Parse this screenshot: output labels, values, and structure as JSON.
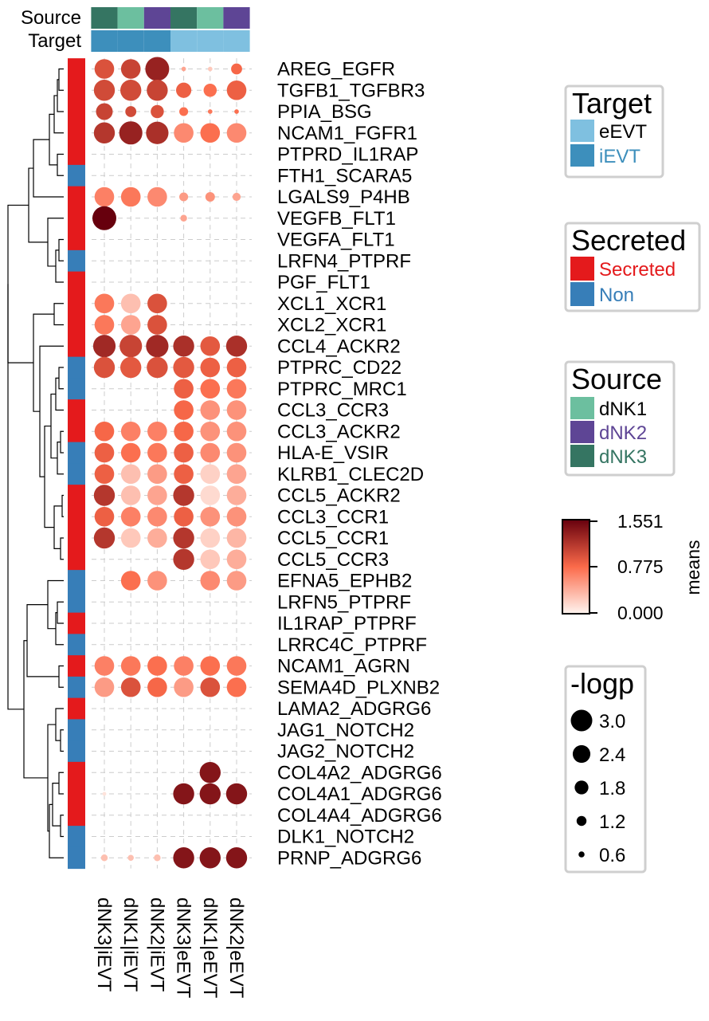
{
  "chart_data": {
    "type": "dotplot-heatmap",
    "color_scale": {
      "title": "means",
      "min": 0.0,
      "max": 1.551,
      "ticks": [
        "1.551",
        "0.775",
        "0.000"
      ],
      "low_color": "#fff5f0",
      "mid_color": "#fb6a4a",
      "high_color": "#67000d"
    },
    "size_scale": {
      "title": "-logp",
      "entries": [
        "3.0",
        "2.4",
        "1.8",
        "1.2",
        "0.6"
      ],
      "values": [
        3.0,
        2.4,
        1.8,
        1.2,
        0.6
      ]
    },
    "annotations": {
      "source_label": "Source",
      "target_label": "Target",
      "source": [
        "dNK3",
        "dNK1",
        "dNK2",
        "dNK3",
        "dNK1",
        "dNK2"
      ],
      "target": [
        "iEVT",
        "iEVT",
        "iEVT",
        "eEVT",
        "eEVT",
        "eEVT"
      ]
    },
    "legends": {
      "target": {
        "title": "Target",
        "items": [
          {
            "label": "eEVT",
            "color": "#7fc0e0"
          },
          {
            "label": "iEVT",
            "color": "#3d8fbc"
          }
        ]
      },
      "secreted": {
        "title": "Secreted",
        "items": [
          {
            "label": "Secreted",
            "color": "#e41a1c"
          },
          {
            "label": "Non",
            "color": "#377eb8"
          }
        ]
      },
      "source": {
        "title": "Source",
        "items": [
          {
            "label": "dNK1",
            "color": "#6cbf9f"
          },
          {
            "label": "dNK2",
            "color": "#5e4595"
          },
          {
            "label": "dNK3",
            "color": "#357562"
          }
        ]
      }
    },
    "columns": [
      "dNK3|iEVT",
      "dNK1|iEVT",
      "dNK2|iEVT",
      "dNK3|eEVT",
      "dNK1|eEVT",
      "dNK2|eEVT"
    ],
    "rows": [
      {
        "name": "AREG_EGFR",
        "secreted": "Secreted",
        "means": [
          0.95,
          1.05,
          1.3,
          0.45,
          0.25,
          0.8
        ],
        "logp": [
          2.4,
          2.4,
          3.0,
          0.3,
          0.3,
          1.2
        ]
      },
      {
        "name": "TGFB1_TGFBR3",
        "secreted": "Secreted",
        "means": [
          1.0,
          1.0,
          1.05,
          0.85,
          0.75,
          0.85
        ],
        "logp": [
          2.6,
          2.6,
          2.6,
          1.8,
          1.5,
          2.4
        ]
      },
      {
        "name": "PPIA_BSG",
        "secreted": "Secreted",
        "means": [
          1.05,
          1.0,
          0.95,
          0.75,
          0.7,
          0.75
        ],
        "logp": [
          2.0,
          1.2,
          1.5,
          0.9,
          0.3,
          0.3
        ]
      },
      {
        "name": "NCAM1_FGFR1",
        "secreted": "Secreted",
        "means": [
          1.15,
          1.3,
          1.2,
          0.6,
          0.75,
          0.6
        ],
        "logp": [
          2.6,
          2.9,
          2.8,
          2.4,
          2.4,
          2.4
        ]
      },
      {
        "name": "PTPRD_IL1RAP",
        "secreted": "Secreted",
        "means": [
          0,
          0,
          0,
          0,
          0,
          0
        ],
        "logp": [
          0,
          0,
          0,
          0,
          0,
          0
        ]
      },
      {
        "name": "FTH1_SCARA5",
        "secreted": "Non",
        "means": [
          0,
          0,
          0,
          0,
          0,
          0
        ],
        "logp": [
          0,
          0,
          0,
          0,
          0,
          0
        ]
      },
      {
        "name": "LGALS9_P4HB",
        "secreted": "Secreted",
        "means": [
          0.65,
          0.7,
          0.6,
          0.5,
          0.55,
          0.45
        ],
        "logp": [
          2.4,
          2.4,
          2.4,
          0.9,
          1.0,
          0.8
        ]
      },
      {
        "name": "VEGFB_FLT1",
        "secreted": "Secreted",
        "means": [
          1.55,
          0,
          0,
          0.45,
          0,
          0
        ],
        "logp": [
          3.0,
          0,
          0,
          0.6,
          0,
          0
        ]
      },
      {
        "name": "VEGFA_FLT1",
        "secreted": "Secreted",
        "means": [
          0,
          0,
          0,
          0,
          0,
          0
        ],
        "logp": [
          0,
          0,
          0,
          0,
          0,
          0
        ]
      },
      {
        "name": "LRFN4_PTPRF",
        "secreted": "Non",
        "means": [
          0,
          0,
          0,
          0,
          0,
          0
        ],
        "logp": [
          0,
          0,
          0,
          0,
          0,
          0
        ]
      },
      {
        "name": "PGF_FLT1",
        "secreted": "Secreted",
        "means": [
          0,
          0,
          0,
          0,
          0,
          0
        ],
        "logp": [
          0,
          0,
          0,
          0,
          0,
          0
        ]
      },
      {
        "name": "XCL1_XCR1",
        "secreted": "Secreted",
        "means": [
          0.7,
          0.3,
          0.95,
          0,
          0,
          0
        ],
        "logp": [
          2.4,
          2.4,
          2.4,
          0,
          0,
          0
        ]
      },
      {
        "name": "XCL2_XCR1",
        "secreted": "Secreted",
        "means": [
          0.7,
          0.45,
          0.95,
          0,
          0,
          0
        ],
        "logp": [
          2.4,
          2.4,
          2.4,
          0,
          0,
          0
        ]
      },
      {
        "name": "CCL4_ACKR2",
        "secreted": "Secreted",
        "means": [
          1.25,
          1.05,
          1.25,
          1.2,
          0.9,
          1.2
        ],
        "logp": [
          2.8,
          2.8,
          2.8,
          2.6,
          2.4,
          2.6
        ]
      },
      {
        "name": "PTPRC_CD22",
        "secreted": "Non",
        "means": [
          0.95,
          0.9,
          0.95,
          0.9,
          0.85,
          0.85
        ],
        "logp": [
          2.6,
          2.6,
          2.6,
          2.6,
          2.4,
          2.4
        ]
      },
      {
        "name": "PTPRC_MRC1",
        "secreted": "Non",
        "means": [
          0,
          0,
          0,
          0.85,
          0.75,
          0.7
        ],
        "logp": [
          0,
          0,
          0,
          2.4,
          2.4,
          2.4
        ]
      },
      {
        "name": "CCL3_CCR3",
        "secreted": "Secreted",
        "means": [
          0,
          0,
          0,
          0.8,
          0.55,
          0.55
        ],
        "logp": [
          0,
          0,
          0,
          2.4,
          2.4,
          2.4
        ]
      },
      {
        "name": "CCL3_ACKR2",
        "secreted": "Secreted",
        "means": [
          0.8,
          0.65,
          0.65,
          0.8,
          0.55,
          0.55
        ],
        "logp": [
          2.4,
          2.4,
          2.4,
          2.4,
          2.4,
          2.4
        ]
      },
      {
        "name": "HLA-E_VSIR",
        "secreted": "Non",
        "means": [
          0.85,
          0.75,
          0.7,
          0.85,
          0.6,
          0.55
        ],
        "logp": [
          2.4,
          2.4,
          2.4,
          2.4,
          2.4,
          2.4
        ]
      },
      {
        "name": "KLRB1_CLEC2D",
        "secreted": "Non",
        "means": [
          0.85,
          0.3,
          0.5,
          0.85,
          0.2,
          0.45
        ],
        "logp": [
          2.4,
          2.4,
          2.4,
          2.4,
          2.4,
          2.4
        ]
      },
      {
        "name": "CCL5_ACKR2",
        "secreted": "Secreted",
        "means": [
          1.15,
          0.3,
          0.45,
          1.15,
          0.15,
          0.4
        ],
        "logp": [
          2.6,
          2.4,
          2.4,
          2.6,
          2.4,
          2.4
        ]
      },
      {
        "name": "CCL3_CCR1",
        "secreted": "Secreted",
        "means": [
          0.85,
          0.65,
          0.6,
          0.85,
          0.55,
          0.55
        ],
        "logp": [
          2.4,
          2.4,
          2.4,
          2.4,
          2.4,
          2.4
        ]
      },
      {
        "name": "CCL5_CCR1",
        "secreted": "Secreted",
        "means": [
          1.15,
          0.25,
          0.4,
          1.15,
          0.2,
          0.35
        ],
        "logp": [
          2.6,
          2.4,
          2.4,
          2.6,
          2.4,
          2.4
        ]
      },
      {
        "name": "CCL5_CCR3",
        "secreted": "Secreted",
        "means": [
          0,
          0,
          0,
          1.15,
          0.25,
          0.4
        ],
        "logp": [
          0,
          0,
          0,
          2.6,
          2.4,
          2.4
        ]
      },
      {
        "name": "EFNA5_EPHB2",
        "secreted": "Non",
        "means": [
          0,
          0.75,
          0.55,
          0,
          0.6,
          0.5
        ],
        "logp": [
          0,
          2.4,
          2.4,
          0,
          2.4,
          2.4
        ]
      },
      {
        "name": "LRFN5_PTPRF",
        "secreted": "Non",
        "means": [
          0,
          0,
          0,
          0,
          0,
          0
        ],
        "logp": [
          0,
          0,
          0,
          0,
          0,
          0
        ]
      },
      {
        "name": "IL1RAP_PTPRF",
        "secreted": "Secreted",
        "means": [
          0,
          0,
          0,
          0,
          0,
          0
        ],
        "logp": [
          0,
          0,
          0,
          0,
          0,
          0
        ]
      },
      {
        "name": "LRRC4C_PTPRF",
        "secreted": "Non",
        "means": [
          0,
          0,
          0,
          0,
          0,
          0
        ],
        "logp": [
          0,
          0,
          0,
          0,
          0,
          0
        ]
      },
      {
        "name": "NCAM1_AGRN",
        "secreted": "Secreted",
        "means": [
          0.65,
          0.7,
          0.75,
          0.65,
          0.75,
          0.7
        ],
        "logp": [
          2.4,
          2.4,
          2.4,
          2.4,
          2.4,
          2.4
        ]
      },
      {
        "name": "SEMA4D_PLXNB2",
        "secreted": "Non",
        "means": [
          0.5,
          0.95,
          0.8,
          0.5,
          0.95,
          0.75
        ],
        "logp": [
          2.4,
          2.4,
          2.4,
          2.4,
          2.4,
          2.4
        ]
      },
      {
        "name": "LAMA2_ADGRG6",
        "secreted": "Secreted",
        "means": [
          0,
          0,
          0,
          0,
          0,
          0
        ],
        "logp": [
          0,
          0,
          0,
          0,
          0,
          0
        ]
      },
      {
        "name": "JAG1_NOTCH2",
        "secreted": "Non",
        "means": [
          0,
          0,
          0,
          0,
          0,
          0
        ],
        "logp": [
          0,
          0,
          0,
          0,
          0,
          0
        ]
      },
      {
        "name": "JAG2_NOTCH2",
        "secreted": "Non",
        "means": [
          0,
          0,
          0,
          0,
          0,
          0
        ],
        "logp": [
          0,
          0,
          0,
          0,
          0,
          0
        ]
      },
      {
        "name": "COL4A2_ADGRG6",
        "secreted": "Secreted",
        "means": [
          0,
          0,
          0,
          0,
          1.4,
          0
        ],
        "logp": [
          0,
          0,
          0,
          0,
          2.6,
          0
        ]
      },
      {
        "name": "COL4A1_ADGRG6",
        "secreted": "Secreted",
        "means": [
          0.1,
          0,
          0,
          1.4,
          1.4,
          1.4
        ],
        "logp": [
          0.2,
          0,
          0,
          2.6,
          2.6,
          2.6
        ]
      },
      {
        "name": "COL4A4_ADGRG6",
        "secreted": "Secreted",
        "means": [
          0,
          0,
          0,
          0,
          0,
          0
        ],
        "logp": [
          0,
          0,
          0,
          0,
          0,
          0
        ]
      },
      {
        "name": "DLK1_NOTCH2",
        "secreted": "Non",
        "means": [
          0,
          0,
          0,
          0,
          0,
          0
        ],
        "logp": [
          0,
          0,
          0,
          0,
          0,
          0
        ]
      },
      {
        "name": "PRNP_ADGRG6",
        "secreted": "Non",
        "means": [
          0.3,
          0.3,
          0.3,
          1.4,
          1.4,
          1.4
        ],
        "logp": [
          0.6,
          0.5,
          0.6,
          2.6,
          2.6,
          2.6
        ]
      }
    ]
  }
}
